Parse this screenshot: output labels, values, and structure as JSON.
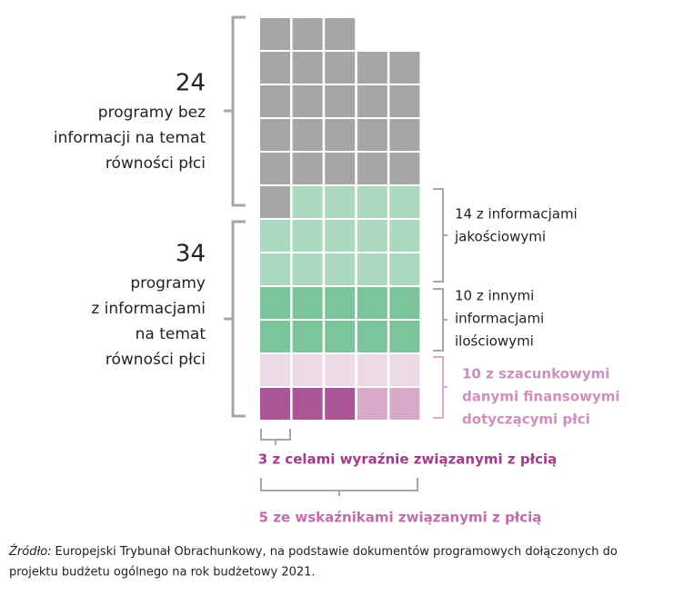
{
  "groups": [
    {
      "value": 24,
      "label": [
        "programy bez",
        "informacji na temat",
        "równości płci"
      ],
      "color": "#a6a6a6"
    },
    {
      "value": 34,
      "label": [
        "programy",
        "z informacjami",
        "na temat",
        "równości płci"
      ],
      "parts": [
        {
          "value": 14,
          "label": [
            "14 z informacjami",
            "jakościowymi"
          ],
          "color": "#acd8bf",
          "text_color": "#222222"
        },
        {
          "value": 10,
          "label": [
            "10 z innymi",
            "informacjami",
            "ilościowymi"
          ],
          "color": "#7cc49c",
          "text_color": "#222222"
        },
        {
          "value": 10,
          "label": [
            "10 z szacunkowymi",
            "danymi finansowymi",
            "dotyczącymi płci"
          ],
          "color": "#eed9e7",
          "text_color": "#cf8dc0",
          "subsets": [
            {
              "value": 5,
              "label": "5 ze wskaźnikami związanymi z płcią",
              "color": "#d9a9cc",
              "text_color": "#c26cab"
            },
            {
              "value": 3,
              "label": "3 z celami wyraźnie związanymi z płcią",
              "color": "#ab5598",
              "text_color": "#a23b8c"
            }
          ]
        }
      ]
    }
  ],
  "source": {
    "prefix": "Źródło:",
    "lines": [
      "Europejski Trybunał Obrachunkowy, na podstawie dokumentów programowych dołączonych do",
      "projektu budżetu ogólnego na rok budżetowy 2021."
    ]
  }
}
